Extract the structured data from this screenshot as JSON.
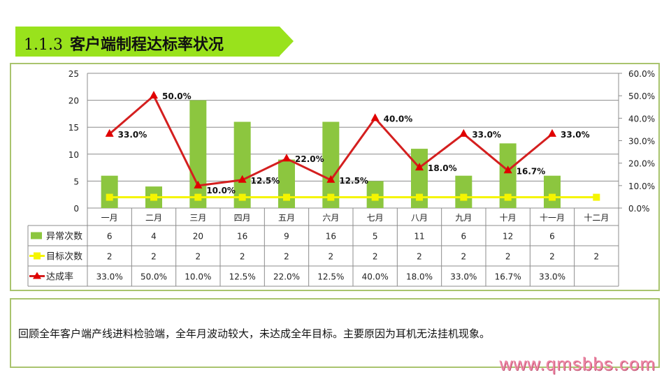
{
  "title": {
    "number": "1.1.3",
    "text": "客户端制程达标率状况"
  },
  "chart_data": {
    "type": "bar",
    "categories": [
      "一月",
      "二月",
      "三月",
      "四月",
      "五月",
      "六月",
      "七月",
      "八月",
      "九月",
      "十月",
      "十一月",
      "十二月"
    ],
    "series": [
      {
        "name": "异常次数",
        "type": "bar",
        "axis": "left",
        "color": "#8cc63f",
        "values": [
          6,
          4,
          20,
          16,
          9,
          16,
          5,
          11,
          6,
          12,
          6,
          null
        ]
      },
      {
        "name": "目标次数",
        "type": "line",
        "axis": "left",
        "color": "#f5f500",
        "values": [
          2,
          2,
          2,
          2,
          2,
          2,
          2,
          2,
          2,
          2,
          2,
          2
        ]
      },
      {
        "name": "达成率",
        "type": "line",
        "axis": "right",
        "color": "#d41f1f",
        "values": [
          33.0,
          50.0,
          10.0,
          12.5,
          22.0,
          12.5,
          40.0,
          18.0,
          33.0,
          16.7,
          33.0,
          null
        ],
        "labels": [
          "33.0%",
          "50.0%",
          "10.0%",
          "12.5%",
          "22.0%",
          "12.5%",
          "40.0%",
          "18.0%",
          "33.0%",
          "16.7%",
          "33.0%",
          ""
        ]
      }
    ],
    "left_axis": {
      "ylim": [
        0,
        25
      ],
      "ticks": [
        "0",
        "5",
        "10",
        "15",
        "20",
        "25"
      ]
    },
    "right_axis": {
      "ylim": [
        0,
        60
      ],
      "ticks": [
        "0.0%",
        "10.0%",
        "20.0%",
        "30.0%",
        "40.0%",
        "50.0%",
        "60.0%"
      ]
    },
    "table": {
      "rows": [
        [
          "6",
          "4",
          "20",
          "16",
          "9",
          "16",
          "5",
          "11",
          "6",
          "12",
          "6",
          ""
        ],
        [
          "2",
          "2",
          "2",
          "2",
          "2",
          "2",
          "2",
          "2",
          "2",
          "2",
          "2",
          "2"
        ],
        [
          "33.0%",
          "50.0%",
          "10.0%",
          "12.5%",
          "22.0%",
          "12.5%",
          "40.0%",
          "18.0%",
          "33.0%",
          "16.7%",
          "33.0%",
          ""
        ]
      ]
    },
    "grid": true
  },
  "note": "回顾全年客户端产线进料检验端，全年月波动较大，未达成全年目标。主要原因为耳机无法挂机现象。",
  "watermark": "www.qmsbbs.com"
}
